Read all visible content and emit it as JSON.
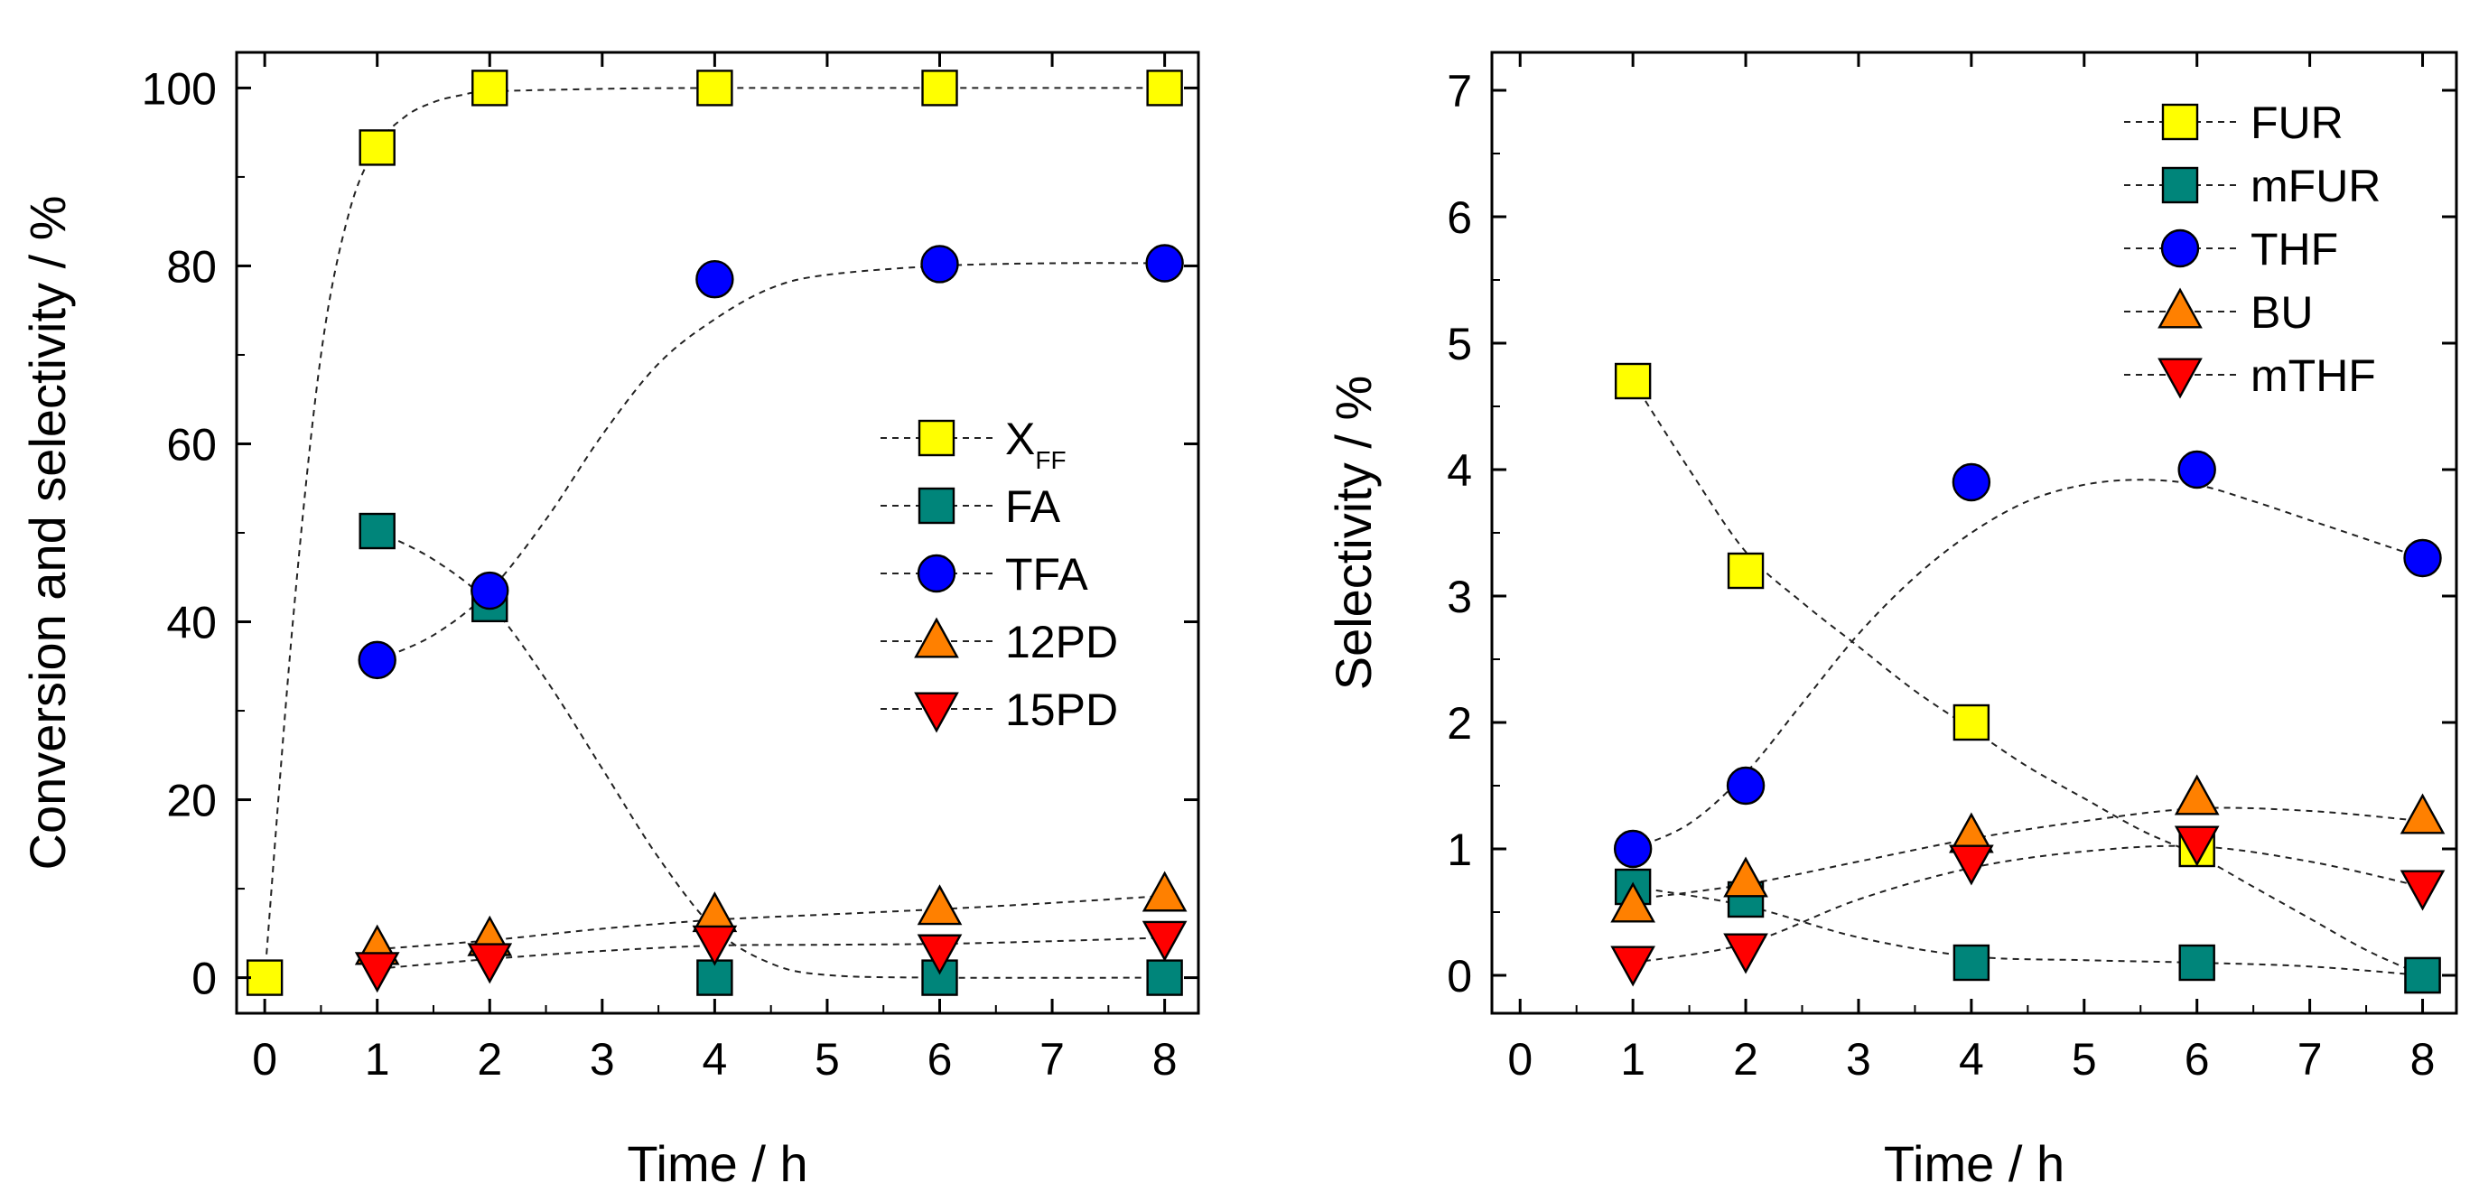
{
  "chart_data": [
    {
      "type": "scatter",
      "xlabel": "Time / h",
      "ylabel": "Conversion and selectivity / %",
      "xlim": [
        -0.25,
        8.3
      ],
      "ylim": [
        -4,
        104
      ],
      "xticks": [
        0,
        1,
        2,
        3,
        4,
        5,
        6,
        7,
        8
      ],
      "yticks": [
        0,
        20,
        40,
        60,
        80,
        100
      ],
      "grid": false,
      "legend_position": "center-right",
      "series": [
        {
          "name": "X",
          "sub": "FF",
          "marker": "square",
          "color": "#ffff00",
          "x": [
            0,
            1,
            2,
            4,
            6,
            8
          ],
          "values": [
            0,
            93.3,
            100,
            100,
            100,
            100
          ],
          "fit": [
            [
              0,
              0
            ],
            [
              0.25,
              40
            ],
            [
              0.5,
              70
            ],
            [
              0.75,
              86
            ],
            [
              1,
              93.5
            ],
            [
              1.25,
              96.8
            ],
            [
              1.5,
              98.4
            ],
            [
              1.75,
              99.2
            ],
            [
              2,
              99.6
            ],
            [
              3,
              99.9
            ],
            [
              4,
              100
            ],
            [
              6,
              100
            ],
            [
              8,
              100
            ]
          ]
        },
        {
          "name": "FA",
          "marker": "square",
          "color": "#00857a",
          "x": [
            1,
            2,
            4,
            6,
            8
          ],
          "values": [
            50.2,
            42,
            0,
            0,
            0
          ],
          "fit": [
            [
              1,
              50.2
            ],
            [
              1.5,
              47
            ],
            [
              2,
              42
            ],
            [
              2.5,
              33.5
            ],
            [
              3,
              23.5
            ],
            [
              3.5,
              13.5
            ],
            [
              4,
              5.5
            ],
            [
              4.5,
              1.6
            ],
            [
              5,
              0.3
            ],
            [
              6,
              0
            ],
            [
              8,
              0
            ]
          ]
        },
        {
          "name": "TFA",
          "marker": "circle",
          "color": "#0000ff",
          "x": [
            1,
            2,
            4,
            6,
            8
          ],
          "values": [
            35.7,
            43.5,
            78.5,
            80.2,
            80.3
          ],
          "fit": [
            [
              1,
              35.7
            ],
            [
              1.5,
              38.5
            ],
            [
              2,
              43.5
            ],
            [
              2.5,
              51.5
            ],
            [
              3,
              61
            ],
            [
              3.5,
              69
            ],
            [
              4,
              74
            ],
            [
              4.5,
              77.5
            ],
            [
              5,
              79
            ],
            [
              6,
              80
            ],
            [
              7,
              80.3
            ],
            [
              8,
              80.3
            ]
          ]
        },
        {
          "name": "12PD",
          "marker": "triangle-up",
          "color": "#ff8000",
          "x": [
            1,
            2,
            4,
            6,
            8
          ],
          "values": [
            3.3,
            4.3,
            7.0,
            7.8,
            9.3
          ],
          "fit": [
            [
              1,
              3.2
            ],
            [
              2,
              4.2
            ],
            [
              3,
              5.5
            ],
            [
              4,
              6.5
            ],
            [
              5,
              7.1
            ],
            [
              6,
              7.7
            ],
            [
              7,
              8.4
            ],
            [
              8,
              9.2
            ]
          ]
        },
        {
          "name": "15PD",
          "marker": "triangle-down",
          "color": "#ff0000",
          "x": [
            1,
            2,
            4,
            6,
            8
          ],
          "values": [
            1.0,
            2.0,
            4.0,
            3.0,
            4.5
          ],
          "fit": [
            [
              1,
              1.0
            ],
            [
              2,
              2.1
            ],
            [
              3,
              3.0
            ],
            [
              4,
              3.6
            ],
            [
              5,
              3.7
            ],
            [
              6,
              3.8
            ],
            [
              7,
              4.1
            ],
            [
              8,
              4.5
            ]
          ]
        }
      ]
    },
    {
      "type": "scatter",
      "xlabel": "Time / h",
      "ylabel": "Selectivity / %",
      "xlim": [
        -0.25,
        8.3
      ],
      "ylim": [
        -0.3,
        7.3
      ],
      "xticks": [
        0,
        1,
        2,
        3,
        4,
        5,
        6,
        7,
        8
      ],
      "yticks": [
        0,
        1,
        2,
        3,
        4,
        5,
        6,
        7
      ],
      "grid": false,
      "legend_position": "top-right",
      "series": [
        {
          "name": "FUR",
          "marker": "square",
          "color": "#ffff00",
          "x": [
            1,
            2,
            4,
            6,
            8
          ],
          "values": [
            4.7,
            3.2,
            2.0,
            1.0,
            0.0
          ],
          "fit": [
            [
              1,
              4.7
            ],
            [
              1.5,
              4.0
            ],
            [
              2,
              3.35
            ],
            [
              2.5,
              2.95
            ],
            [
              3,
              2.6
            ],
            [
              3.5,
              2.25
            ],
            [
              4,
              1.95
            ],
            [
              4.5,
              1.65
            ],
            [
              5,
              1.4
            ],
            [
              5.5,
              1.15
            ],
            [
              6,
              0.95
            ],
            [
              6.5,
              0.7
            ],
            [
              7,
              0.45
            ],
            [
              7.5,
              0.2
            ],
            [
              8,
              0.0
            ]
          ]
        },
        {
          "name": "mFUR",
          "marker": "square",
          "color": "#00857a",
          "x": [
            1,
            2,
            4,
            6,
            8
          ],
          "values": [
            0.7,
            0.6,
            0.1,
            0.1,
            0.0
          ],
          "fit": [
            [
              1,
              0.7
            ],
            [
              2,
              0.55
            ],
            [
              3,
              0.3
            ],
            [
              4,
              0.15
            ],
            [
              5,
              0.12
            ],
            [
              6,
              0.1
            ],
            [
              7,
              0.07
            ],
            [
              8,
              0.0
            ]
          ]
        },
        {
          "name": "THF",
          "marker": "circle",
          "color": "#0000ff",
          "x": [
            1,
            2,
            4,
            6,
            8
          ],
          "values": [
            1.0,
            1.5,
            3.9,
            4.0,
            3.3
          ],
          "fit": [
            [
              1,
              1.0
            ],
            [
              1.5,
              1.2
            ],
            [
              2,
              1.6
            ],
            [
              2.5,
              2.15
            ],
            [
              3,
              2.7
            ],
            [
              3.5,
              3.15
            ],
            [
              4,
              3.5
            ],
            [
              4.5,
              3.75
            ],
            [
              5,
              3.88
            ],
            [
              5.5,
              3.92
            ],
            [
              6,
              3.88
            ],
            [
              6.5,
              3.75
            ],
            [
              7,
              3.6
            ],
            [
              7.5,
              3.45
            ],
            [
              8,
              3.3
            ]
          ]
        },
        {
          "name": "BU",
          "marker": "triangle-up",
          "color": "#ff8000",
          "x": [
            1,
            2,
            4,
            6,
            8
          ],
          "values": [
            0.55,
            0.75,
            1.1,
            1.4,
            1.25
          ],
          "fit": [
            [
              1,
              0.6
            ],
            [
              2,
              0.72
            ],
            [
              3,
              0.9
            ],
            [
              4,
              1.08
            ],
            [
              5,
              1.22
            ],
            [
              6,
              1.32
            ],
            [
              7,
              1.3
            ],
            [
              8,
              1.22
            ]
          ]
        },
        {
          "name": "mTHF",
          "marker": "triangle-down",
          "color": "#ff0000",
          "x": [
            1,
            2,
            4,
            6,
            8
          ],
          "values": [
            0.1,
            0.2,
            0.9,
            1.05,
            0.7
          ],
          "fit": [
            [
              1,
              0.1
            ],
            [
              2,
              0.25
            ],
            [
              3,
              0.6
            ],
            [
              4,
              0.85
            ],
            [
              5,
              0.98
            ],
            [
              6,
              1.02
            ],
            [
              7,
              0.9
            ],
            [
              8,
              0.7
            ]
          ]
        }
      ]
    }
  ]
}
